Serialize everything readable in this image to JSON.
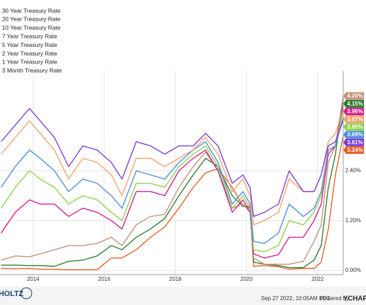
{
  "chart_data": {
    "type": "line",
    "x": [
      2013.1,
      2013.5,
      2013.9,
      2014.2,
      2014.6,
      2015.0,
      2015.4,
      2015.8,
      2016.2,
      2016.5,
      2016.9,
      2017.3,
      2017.7,
      2018.1,
      2018.5,
      2018.85,
      2019.2,
      2019.6,
      2019.9,
      2020.1,
      2020.2,
      2020.5,
      2020.9,
      2021.2,
      2021.6,
      2021.9,
      2022.1,
      2022.3,
      2022.5,
      2022.72
    ],
    "xlim": [
      2013.07,
      2022.72
    ],
    "xticks": [
      2014,
      2016,
      2018,
      2020,
      2022
    ],
    "ylim": [
      -0.1,
      4.8
    ],
    "yticks": [
      {
        "value": 0,
        "label": "0.00%"
      },
      {
        "value": 1.2,
        "label": "1.20%"
      },
      {
        "value": 2.4,
        "label": "2.40%"
      }
    ],
    "grid": true,
    "legend": "top-left",
    "series": [
      {
        "name": "30 Year Treasury Rate",
        "color": "#7b3fd6",
        "last_value_label": "3.61%",
        "values": [
          3.1,
          3.5,
          3.9,
          3.6,
          3.2,
          2.5,
          3.0,
          2.9,
          2.6,
          2.2,
          3.1,
          3.0,
          2.8,
          3.0,
          3.0,
          3.3,
          3.0,
          2.1,
          2.3,
          2.0,
          1.3,
          1.4,
          1.6,
          2.4,
          1.9,
          1.9,
          2.3,
          3.0,
          3.1,
          3.61
        ]
      },
      {
        "name": "20 Year Treasury Rate",
        "color": "#f4a26b",
        "last_value_label": "3.87%",
        "values": [
          2.8,
          3.2,
          3.6,
          3.3,
          2.9,
          2.2,
          2.7,
          2.6,
          2.3,
          1.8,
          2.7,
          2.7,
          2.5,
          2.7,
          2.9,
          3.2,
          2.8,
          1.9,
          2.2,
          1.8,
          1.1,
          1.2,
          1.4,
          2.2,
          1.9,
          1.9,
          2.3,
          3.1,
          3.3,
          3.87
        ]
      },
      {
        "name": "10 Year Treasury Rate",
        "color": "#4d8fd9",
        "last_value_label": "3.69%",
        "values": [
          2.0,
          2.5,
          2.9,
          2.7,
          2.4,
          1.9,
          2.2,
          2.1,
          1.8,
          1.5,
          2.4,
          2.3,
          2.2,
          2.6,
          2.9,
          3.1,
          2.6,
          1.6,
          1.9,
          1.6,
          0.7,
          0.65,
          0.9,
          1.6,
          1.3,
          1.5,
          1.9,
          2.9,
          3.0,
          3.69
        ]
      },
      {
        "name": "7 Year Treasury Rate",
        "color": "#8fd14f",
        "last_value_label": "3.85%",
        "values": [
          1.5,
          2.0,
          2.4,
          2.2,
          2.0,
          1.6,
          1.8,
          1.7,
          1.4,
          1.2,
          2.1,
          2.1,
          2.0,
          2.5,
          2.8,
          3.0,
          2.5,
          1.5,
          1.8,
          1.5,
          0.5,
          0.45,
          0.6,
          1.2,
          1.1,
          1.4,
          1.8,
          2.9,
          3.0,
          3.85
        ]
      },
      {
        "name": "5 Year Treasury Rate",
        "color": "#d4208f",
        "last_value_label": "3.96%",
        "values": [
          0.9,
          1.4,
          1.7,
          1.6,
          1.6,
          1.3,
          1.5,
          1.4,
          1.2,
          1.0,
          1.9,
          1.9,
          1.8,
          2.4,
          2.7,
          2.9,
          2.4,
          1.4,
          1.7,
          1.4,
          0.4,
          0.3,
          0.38,
          0.8,
          0.8,
          1.2,
          1.6,
          2.8,
          3.0,
          3.96
        ]
      },
      {
        "name": "2 Year Treasury Rate",
        "color": "#c4917a",
        "last_value_label": "4.20%",
        "values": [
          0.25,
          0.35,
          0.33,
          0.4,
          0.5,
          0.6,
          0.6,
          0.65,
          0.8,
          0.6,
          1.1,
          1.3,
          1.35,
          2.0,
          2.5,
          2.85,
          2.4,
          1.5,
          1.6,
          1.4,
          0.3,
          0.15,
          0.15,
          0.15,
          0.22,
          0.7,
          1.1,
          2.6,
          3.0,
          4.2
        ]
      },
      {
        "name": "1 Year Treasury Rate",
        "color": "#2e7d32",
        "last_value_label": "4.15%",
        "values": [
          0.13,
          0.13,
          0.12,
          0.12,
          0.1,
          0.22,
          0.25,
          0.35,
          0.6,
          0.5,
          0.8,
          1.0,
          1.25,
          1.8,
          2.3,
          2.7,
          2.5,
          1.8,
          1.55,
          1.5,
          0.2,
          0.15,
          0.12,
          0.07,
          0.07,
          0.25,
          0.6,
          2.0,
          2.8,
          4.15
        ]
      },
      {
        "name": "3 Month Treasury Rate",
        "color": "#e8602c",
        "last_value_label": "3.24%",
        "values": [
          0.05,
          0.04,
          0.05,
          0.03,
          0.03,
          0.02,
          0.02,
          0.02,
          0.3,
          0.3,
          0.5,
          0.8,
          1.05,
          1.5,
          2.0,
          2.35,
          2.45,
          2.0,
          1.55,
          1.55,
          0.1,
          0.12,
          0.09,
          0.03,
          0.05,
          0.05,
          0.2,
          1.0,
          2.3,
          3.24
        ]
      }
    ]
  },
  "footer": {
    "logo": "HOLTZ",
    "timestamp": "Sep 27 2022, 10:05AM EDT.",
    "powered_by": "Powered by",
    "brand": "YCHARTS"
  }
}
